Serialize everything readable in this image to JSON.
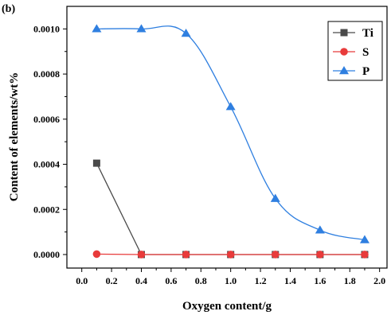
{
  "chart_data": {
    "type": "line",
    "panel_label": "(b)",
    "xlabel": "Oxygen content/g",
    "ylabel": "Content of elements/wt%",
    "xlim": [
      -0.1,
      2.05
    ],
    "ylim": [
      -6e-05,
      0.0011
    ],
    "x_ticks": [
      "0.0",
      "0.2",
      "0.4",
      "0.6",
      "0.8",
      "1.0",
      "1.2",
      "1.4",
      "1.6",
      "1.8",
      "2.0"
    ],
    "y_ticks": [
      "0.0000",
      "0.0002",
      "0.0004",
      "0.0006",
      "0.0008",
      "0.0010"
    ],
    "legend_position": "top-right",
    "series": [
      {
        "name": "Ti",
        "color": "#4a4a4a",
        "marker": "square",
        "x": [
          0.1,
          0.4,
          0.7,
          1.0,
          1.3,
          1.6,
          1.9
        ],
        "y": [
          0.000405,
          0.0,
          0.0,
          0.0,
          0.0,
          0.0,
          0.0
        ]
      },
      {
        "name": "S",
        "color": "#e83b3b",
        "marker": "circle",
        "x": [
          0.1,
          0.4,
          0.7,
          1.0,
          1.3,
          1.6,
          1.9
        ],
        "y": [
          2e-06,
          0.0,
          0.0,
          0.0,
          0.0,
          0.0,
          0.0
        ]
      },
      {
        "name": "P",
        "color": "#2f7fe0",
        "marker": "triangle",
        "smooth": true,
        "x": [
          0.1,
          0.4,
          0.7,
          1.0,
          1.3,
          1.6,
          1.9
        ],
        "y": [
          0.001,
          0.001,
          0.00098,
          0.000655,
          0.000248,
          0.000108,
          6.5e-05
        ]
      }
    ]
  }
}
